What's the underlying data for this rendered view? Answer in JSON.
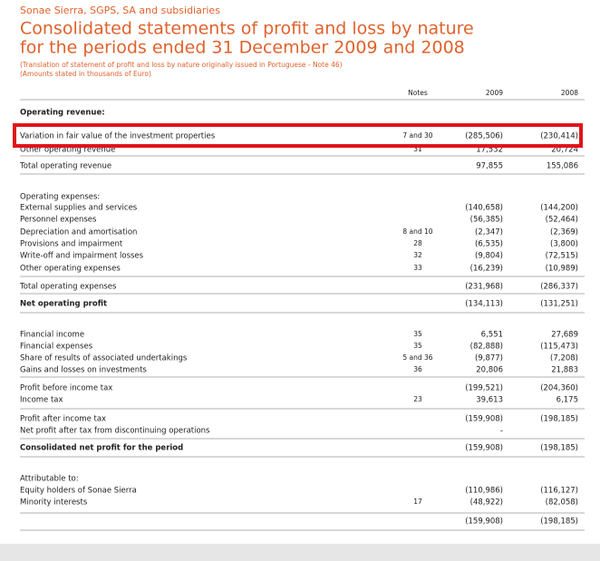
{
  "header": {
    "company": "Sonae Sierra, SGPS, SA and subsidiaries",
    "title_lines": [
      "Consolidated statements of profit and loss by nature",
      "for the periods ended 31 December 2009 and 2008"
    ],
    "notes": [
      "(Translation of statement of profit and loss by nature originally issued in Portuguese - Note 46)",
      "(Amounts stated in thousands of Euro)"
    ]
  },
  "table": {
    "columns": [
      "Notes",
      "2009",
      "2008"
    ],
    "rows": [
      {
        "label": "Operating revenue:"
      },
      {
        "label": "Variation in fair value of the investment properties",
        "notes": "7 and 30",
        "v2009": "(285,506)",
        "v2008": "(230,414)"
      },
      {
        "label": "Other operating revenue",
        "notes": "31",
        "v2009": "17,532",
        "v2008": "20,724"
      },
      {
        "label": "Total operating revenue",
        "v2009": "97,855",
        "v2008": "155,086"
      },
      {
        "label": "Operating expenses:"
      },
      {
        "label": "External supplies and services",
        "v2009": "(140,658)",
        "v2008": "(144,200)"
      },
      {
        "label": "Personnel expenses",
        "v2009": "(56,385)",
        "v2008": "(52,464)"
      },
      {
        "label": "Depreciation and amortisation",
        "notes": "8 and 10",
        "v2009": "(2,347)",
        "v2008": "(2,369)"
      },
      {
        "label": "Provisions and impairment",
        "notes": "28",
        "v2009": "(6,535)",
        "v2008": "(3,800)"
      },
      {
        "label": "Write-off and impairment losses",
        "notes": "32",
        "v2009": "(9,804)",
        "v2008": "(72,515)"
      },
      {
        "label": "Other operating expenses",
        "notes": "33",
        "v2009": "(16,239)",
        "v2008": "(10,989)"
      },
      {
        "label": "Total operating expenses",
        "v2009": "(231,968)",
        "v2008": "(286,337)"
      },
      {
        "label": "Net operating profit",
        "v2009": "(134,113)",
        "v2008": "(131,251)"
      },
      {
        "label": "Financial income",
        "notes": "35",
        "v2009": "6,551",
        "v2008": "27,689"
      },
      {
        "label": "Financial expenses",
        "notes": "35",
        "v2009": "(82,888)",
        "v2008": "(115,473)"
      },
      {
        "label": "Share of results of associated undertakings",
        "notes": "5 and 36",
        "v2009": "(9,877)",
        "v2008": "(7,208)"
      },
      {
        "label": "Gains and losses on investments",
        "notes": "36",
        "v2009": "20,806",
        "v2008": "21,883"
      },
      {
        "label": "Profit before income tax",
        "v2009": "(199,521)",
        "v2008": "(204,360)"
      },
      {
        "label": "Income tax",
        "notes": "23",
        "v2009": "39,613",
        "v2008": "6,175"
      },
      {
        "label": "Profit after income tax",
        "v2009": "(159,908)",
        "v2008": "(198,185)"
      },
      {
        "label": "Net profit after tax from discontinuing operations",
        "v2009": "-"
      },
      {
        "label": "Consolidated net profit for the period",
        "v2009": "(159,908)",
        "v2008": "(198,185)"
      },
      {
        "label": "Attributable to:"
      },
      {
        "label": "Equity holders of Sonae Sierra",
        "v2009": "(110,986)",
        "v2008": "(116,127)"
      },
      {
        "label": "Minority interests",
        "notes": "17",
        "v2009": "(48,922)",
        "v2008": "(82,058)"
      },
      {
        "v2009": "(159,908)",
        "v2008": "(198,185)"
      }
    ]
  }
}
